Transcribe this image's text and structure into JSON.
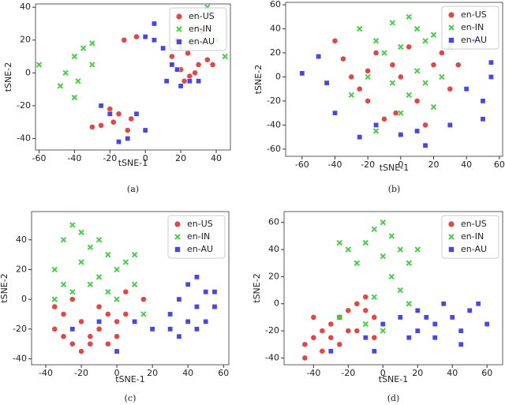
{
  "chart_data": [
    {
      "type": "scatter",
      "caption": "(a)",
      "xlabel": "tSNE-1",
      "ylabel": "tSNE-2",
      "legend": "upper right",
      "xlim": [
        -62,
        48
      ],
      "ylim": [
        -47,
        42
      ],
      "xticks": [
        -60,
        -40,
        -20,
        0,
        20,
        40
      ],
      "yticks": [
        -40,
        -20,
        0,
        20,
        40
      ],
      "series": [
        {
          "name": "en-US",
          "color": "#e04848",
          "marker": "o",
          "x": [
            15,
            20,
            25,
            30,
            22,
            28,
            35,
            18,
            24,
            32,
            -5,
            -12,
            -8,
            -18,
            -25,
            -15,
            -10,
            -20,
            -30,
            38
          ],
          "values": [
            10,
            2,
            -2,
            5,
            -5,
            0,
            8,
            20,
            12,
            25,
            22,
            20,
            -28,
            -30,
            -32,
            -25,
            -35,
            -22,
            -33,
            5
          ]
        },
        {
          "name": "en-IN",
          "color": "#4ccc4c",
          "marker": "x",
          "x": [
            -60,
            -40,
            -35,
            -45,
            -30,
            -38,
            -40,
            -30,
            -48,
            27,
            30,
            35,
            45,
            40,
            20,
            25
          ],
          "values": [
            5,
            10,
            15,
            0,
            5,
            -5,
            -15,
            18,
            -8,
            35,
            28,
            40,
            10,
            20,
            15,
            20
          ]
        },
        {
          "name": "en-AU",
          "color": "#4848dd",
          "marker": "s",
          "x": [
            0,
            5,
            10,
            15,
            12,
            20,
            18,
            25,
            -20,
            -10,
            -15,
            0,
            -5,
            30,
            5,
            -25
          ],
          "values": [
            22,
            30,
            15,
            5,
            -5,
            -8,
            2,
            -5,
            -25,
            -40,
            -42,
            -35,
            -25,
            -5,
            20,
            -20
          ]
        }
      ]
    },
    {
      "type": "scatter",
      "caption": "(b)",
      "xlabel": "tSNE-1",
      "ylabel": "tSNE-2",
      "legend": "upper right",
      "xlim": [
        -70,
        62
      ],
      "ylim": [
        -66,
        62
      ],
      "xticks": [
        -60,
        -40,
        -20,
        0,
        20,
        40,
        60
      ],
      "yticks": [
        -60,
        -40,
        -20,
        0,
        20,
        40,
        60
      ],
      "series": [
        {
          "name": "en-US",
          "color": "#e04848",
          "marker": "o",
          "x": [
            -40,
            -35,
            -30,
            -25,
            -20,
            -15,
            -10,
            -5,
            0,
            5,
            10,
            15,
            20,
            25,
            30,
            35,
            -20,
            -3
          ],
          "values": [
            30,
            15,
            0,
            -10,
            -20,
            20,
            -35,
            10,
            0,
            25,
            -20,
            -40,
            10,
            20,
            -10,
            10,
            5,
            -30
          ]
        },
        {
          "name": "en-IN",
          "color": "#4ccc4c",
          "marker": "x",
          "x": [
            -25,
            -15,
            -5,
            5,
            10,
            15,
            20,
            -10,
            0,
            -20,
            10,
            -5,
            5,
            15,
            25,
            -30,
            0,
            20,
            30,
            -15
          ],
          "values": [
            40,
            30,
            45,
            50,
            40,
            30,
            35,
            20,
            25,
            0,
            5,
            -5,
            -15,
            -5,
            0,
            -15,
            -30,
            -25,
            25,
            -45
          ]
        },
        {
          "name": "en-AU",
          "color": "#4848dd",
          "marker": "s",
          "x": [
            -60,
            -50,
            -45,
            -40,
            -25,
            -15,
            0,
            10,
            15,
            30,
            40,
            50,
            55,
            55,
            45,
            50
          ],
          "values": [
            3,
            17,
            -5,
            -30,
            -50,
            -40,
            -48,
            -45,
            -57,
            -40,
            -10,
            -20,
            0,
            12,
            30,
            -35
          ]
        }
      ]
    },
    {
      "type": "scatter",
      "caption": "(c)",
      "xlabel": "tSNE-1",
      "ylabel": "tSNE-2",
      "legend": "upper right",
      "xlim": [
        -48,
        63
      ],
      "ylim": [
        -44,
        59
      ],
      "xticks": [
        -40,
        -20,
        0,
        20,
        40,
        60
      ],
      "yticks": [
        -40,
        -20,
        0,
        20,
        40
      ],
      "series": [
        {
          "name": "en-US",
          "color": "#e04848",
          "marker": "o",
          "x": [
            -35,
            -30,
            -25,
            -20,
            -15,
            -10,
            -5,
            0,
            -35,
            -25,
            -10,
            5,
            -20,
            -5,
            10,
            -30,
            -15,
            0,
            15,
            5
          ],
          "values": [
            -20,
            -25,
            -30,
            -15,
            -25,
            -20,
            -30,
            -25,
            -5,
            0,
            -5,
            -10,
            -35,
            -10,
            -15,
            -10,
            -30,
            -15,
            0,
            5
          ]
        },
        {
          "name": "en-IN",
          "color": "#4ccc4c",
          "marker": "x",
          "x": [
            -30,
            -25,
            -20,
            -15,
            -10,
            -5,
            -35,
            -30,
            -20,
            -10,
            0,
            5,
            10,
            -5,
            0,
            -25,
            10,
            -35,
            15,
            -15
          ],
          "values": [
            40,
            50,
            45,
            35,
            40,
            30,
            20,
            10,
            25,
            15,
            20,
            25,
            30,
            5,
            0,
            5,
            10,
            0,
            -10,
            10
          ]
        },
        {
          "name": "en-AU",
          "color": "#4848dd",
          "marker": "s",
          "x": [
            30,
            35,
            40,
            45,
            50,
            55,
            45,
            40,
            30,
            50,
            35,
            55,
            10,
            -10,
            -25,
            0,
            20,
            45
          ],
          "values": [
            -10,
            0,
            10,
            15,
            5,
            -5,
            -20,
            -15,
            -20,
            -15,
            -25,
            5,
            -15,
            -15,
            -20,
            -35,
            -20,
            -5
          ]
        }
      ]
    },
    {
      "type": "scatter",
      "caption": "(d)",
      "xlabel": "tSNE-1",
      "ylabel": "tSNE-2",
      "legend": "upper right",
      "xlim": [
        -57,
        69
      ],
      "ylim": [
        -45,
        68
      ],
      "xticks": [
        -40,
        -20,
        0,
        20,
        40,
        60
      ],
      "yticks": [
        -40,
        -20,
        0,
        20,
        40,
        60
      ],
      "series": [
        {
          "name": "en-US",
          "color": "#e04848",
          "marker": "o",
          "x": [
            -45,
            -40,
            -35,
            -30,
            -25,
            -20,
            -15,
            -10,
            -45,
            -35,
            -25,
            -15,
            -5,
            -40,
            -30,
            -20,
            -10,
            -5
          ],
          "values": [
            -30,
            -25,
            -20,
            -15,
            -10,
            -5,
            0,
            -5,
            -40,
            -35,
            -30,
            -20,
            -10,
            -10,
            -25,
            -20,
            5,
            -25
          ]
        },
        {
          "name": "en-IN",
          "color": "#4ccc4c",
          "marker": "x",
          "x": [
            -5,
            0,
            5,
            -10,
            -20,
            -15,
            0,
            10,
            15,
            5,
            20,
            -25,
            10,
            -5,
            -25,
            -10,
            0,
            15
          ],
          "values": [
            55,
            60,
            50,
            45,
            40,
            30,
            35,
            40,
            30,
            20,
            40,
            45,
            10,
            5,
            -10,
            -15,
            -20,
            0
          ]
        },
        {
          "name": "en-AU",
          "color": "#4848dd",
          "marker": "s",
          "x": [
            10,
            20,
            30,
            40,
            50,
            60,
            30,
            20,
            45,
            55,
            35,
            -10,
            -5,
            0,
            -30,
            25,
            45,
            15
          ],
          "values": [
            -10,
            -5,
            -15,
            -10,
            -5,
            -15,
            -25,
            -20,
            -20,
            0,
            0,
            -25,
            -35,
            -15,
            -35,
            -10,
            -30,
            -25
          ]
        }
      ]
    }
  ]
}
